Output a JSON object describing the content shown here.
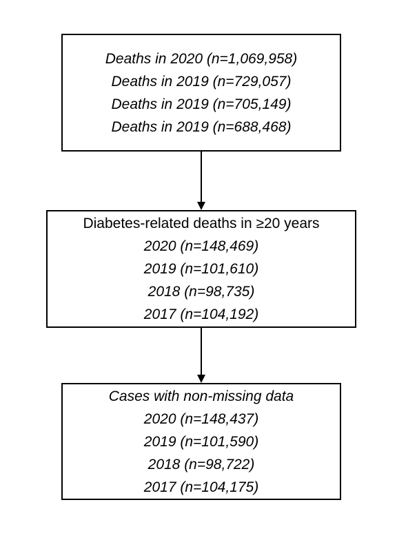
{
  "flow": {
    "box1": {
      "lines": [
        "Deaths in 2020 (n=1,069,958)",
        "Deaths in 2019 (n=729,057)",
        "Deaths in 2019 (n=705,149)",
        "Deaths in 2019 (n=688,468)"
      ]
    },
    "box2": {
      "heading": "Diabetes-related deaths in ≥20 years",
      "lines": [
        "2020 (n=148,469)",
        "2019 (n=101,610)",
        "2018 (n=98,735)",
        "2017 (n=104,192)"
      ]
    },
    "box3": {
      "heading": "Cases with non-missing data",
      "lines": [
        "2020 (n=148,437)",
        "2019 (n=101,590)",
        "2018 (n=98,722)",
        "2017 (n=104,175)"
      ]
    }
  }
}
